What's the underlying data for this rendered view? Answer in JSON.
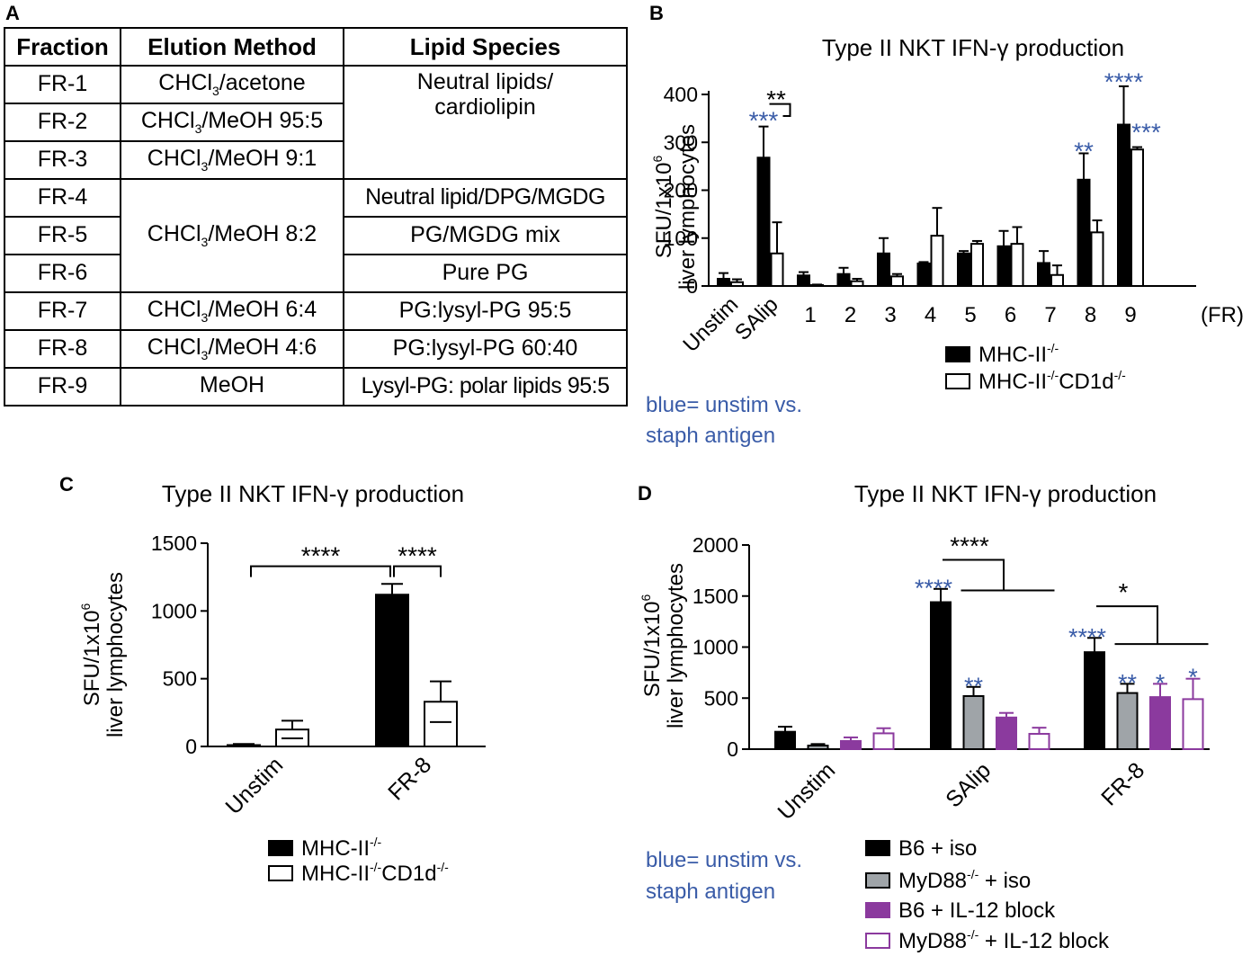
{
  "panel_labels": {
    "a": "A",
    "b": "B",
    "c": "C",
    "d": "D"
  },
  "table": {
    "headers": [
      "Fraction",
      "Elution Method",
      "Lipid Species"
    ],
    "fractions": [
      "FR-1",
      "FR-2",
      "FR-3",
      "FR-4",
      "FR-5",
      "FR-6",
      "FR-7",
      "FR-8",
      "FR-9"
    ],
    "methods": [
      {
        "base": "CHCl",
        "sub": "3",
        "rest": "/acetone"
      },
      {
        "base": "CHCl",
        "sub": "3",
        "rest": "/MeOH 95:5"
      },
      {
        "base": "CHCl",
        "sub": "3",
        "rest": "/MeOH 9:1"
      },
      {
        "base": "CHCl",
        "sub": "3",
        "rest": "/MeOH 8:2"
      },
      {
        "base": "CHCl",
        "sub": "3",
        "rest": "/MeOH 6:4"
      },
      {
        "base": "CHCl",
        "sub": "3",
        "rest": "/MeOH 4:6"
      },
      {
        "base": "MeOH",
        "sub": "",
        "rest": ""
      }
    ],
    "species": [
      "Neutral lipids/",
      "cardiolipin",
      "Neutral lipid/DPG/MGDG",
      "PG/MGDG mix",
      "Pure PG",
      "PG:lysyl-PG 95:5",
      "PG:lysyl-PG 60:40",
      "Lysyl-PG: polar lipids 95:5"
    ]
  },
  "colors": {
    "black": "#000000",
    "gray": "#9fa4a8",
    "purple": "#8b3a9e",
    "blue": "#3a5ca8",
    "white": "#ffffff"
  },
  "chart_data": [
    {
      "id": "B",
      "type": "bar",
      "title": "Type II NKT IFN-γ production",
      "ylabel": [
        "SFU/1x10",
        "6",
        "liver lymphocytes"
      ],
      "ylim": [
        0,
        400
      ],
      "yticks": [
        0,
        100,
        200,
        300,
        400
      ],
      "categories": [
        "Unstim",
        "SAlip",
        "1",
        "2",
        "3",
        "4",
        "5",
        "6",
        "7",
        "8",
        "9"
      ],
      "x_suffix": "(FR)",
      "series": [
        {
          "name": "MHC-II",
          "sup": "-/-",
          "fill": "#000000",
          "values": [
            15,
            268,
            22,
            25,
            68,
            47,
            68,
            83,
            48,
            222,
            337
          ],
          "errors": [
            12,
            65,
            7,
            13,
            32,
            3,
            5,
            32,
            25,
            55,
            80
          ]
        },
        {
          "name": "MHC-II",
          "sup": "-/-",
          "name2": "CD1d",
          "sup2": "-/-",
          "fill": "#ffffff",
          "values": [
            8,
            68,
            2,
            10,
            20,
            105,
            88,
            88,
            23,
            112,
            285
          ],
          "errors": [
            6,
            65,
            1,
            5,
            5,
            58,
            6,
            35,
            20,
            25,
            5
          ]
        }
      ],
      "annotations": [
        {
          "text": "***",
          "color": "blue",
          "cat": 1,
          "series": 0,
          "y": 354
        },
        {
          "text": "**",
          "color": "black",
          "cat": 1,
          "series": 0,
          "y": 398,
          "bracket": true
        },
        {
          "text": "**",
          "color": "blue",
          "cat": 9,
          "series": 0,
          "y": 290
        },
        {
          "text": "****",
          "color": "blue",
          "cat": 10,
          "series": 0,
          "y": 435
        },
        {
          "text": "***",
          "color": "blue",
          "cat": 10,
          "series": 1,
          "y": 330
        }
      ],
      "note": [
        "blue= unstim vs.",
        "staph antigen"
      ]
    },
    {
      "id": "C",
      "type": "bar",
      "title": "Type II NKT IFN-γ production",
      "ylabel": [
        "SFU/1x10",
        "6",
        "liver lymphocytes"
      ],
      "ylim": [
        0,
        1500
      ],
      "yticks": [
        0,
        500,
        1000,
        1500
      ],
      "categories": [
        "Unstim",
        "FR-8"
      ],
      "series": [
        {
          "name": "MHC-II",
          "sup": "-/-",
          "fill": "#000000",
          "values": [
            10,
            1120
          ],
          "errors": [
            8,
            80
          ]
        },
        {
          "name": "MHC-II",
          "sup": "-/-",
          "name2": "CD1d",
          "sup2": "-/-",
          "fill": "#ffffff",
          "values": [
            125,
            330
          ],
          "errors": [
            65,
            150
          ]
        }
      ],
      "significance": [
        {
          "text": "****",
          "from": [
            0,
            0.5
          ],
          "to": [
            1,
            0
          ],
          "y": 1330
        },
        {
          "text": "****",
          "from": [
            1,
            0
          ],
          "to": [
            1,
            1
          ],
          "y": 1330
        }
      ]
    },
    {
      "id": "D",
      "type": "bar",
      "title": "Type II NKT IFN-γ production",
      "ylabel": [
        "SFU/1x10",
        "6",
        "liver lymphocytes"
      ],
      "ylim": [
        0,
        2000
      ],
      "yticks": [
        0,
        500,
        1000,
        1500,
        2000
      ],
      "categories": [
        "Unstim",
        "SAlip",
        "FR-8"
      ],
      "series": [
        {
          "name": "B6 + iso",
          "fill": "#000000",
          "stroke": "#000000",
          "values": [
            170,
            1440,
            950
          ],
          "errors": [
            50,
            130,
            140
          ]
        },
        {
          "name": "MyD88",
          "sup": "-/-",
          "rest": " + iso",
          "fill": "#9fa4a8",
          "stroke": "#000000",
          "values": [
            35,
            520,
            550
          ],
          "errors": [
            15,
            90,
            90
          ]
        },
        {
          "name": "B6 + IL-12 block",
          "fill": "#8b3a9e",
          "stroke": "#8b3a9e",
          "values": [
            80,
            310,
            510
          ],
          "errors": [
            35,
            45,
            130
          ]
        },
        {
          "name": "MyD88",
          "sup": "-/-",
          "rest": " + IL-12 block",
          "fill": "#ffffff",
          "stroke": "#8b3a9e",
          "values": [
            155,
            150,
            490
          ],
          "errors": [
            50,
            60,
            200
          ]
        }
      ],
      "annotations": [
        {
          "text": "****",
          "color": "blue",
          "cat": 1,
          "series": 0,
          "y": 1620
        },
        {
          "text": "**",
          "color": "blue",
          "cat": 1,
          "series": 1,
          "y": 660
        },
        {
          "text": "****",
          "color": "blue",
          "cat": 2,
          "series": 0,
          "y": 1140
        },
        {
          "text": "**",
          "color": "blue",
          "cat": 2,
          "series": 1,
          "y": 690
        },
        {
          "text": "*",
          "color": "blue",
          "cat": 2,
          "series": 2,
          "y": 690
        },
        {
          "text": "*",
          "color": "blue",
          "cat": 2,
          "series": 3,
          "y": 750
        }
      ],
      "group_sig": [
        {
          "text": "****",
          "cat": 1,
          "y_top": 1855,
          "y_bottom": 1555
        },
        {
          "text": "*",
          "cat": 2,
          "y_top": 1400,
          "y_bottom": 1030
        }
      ],
      "note": [
        "blue= unstim vs.",
        "staph antigen"
      ]
    }
  ]
}
